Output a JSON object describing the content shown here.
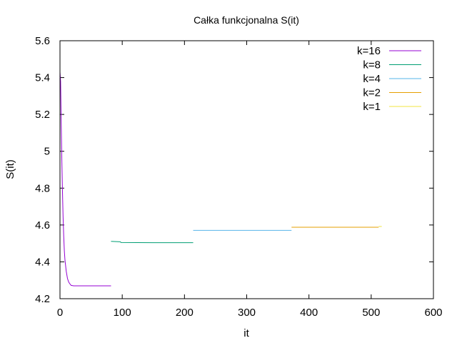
{
  "chart_data": {
    "type": "line",
    "title": "Całka funkcjonalna S(it)",
    "xlabel": "it",
    "ylabel": "S(it)",
    "xlim": [
      0,
      600
    ],
    "ylim": [
      4.2,
      5.6
    ],
    "x_ticks": [
      "0",
      "100",
      "200",
      "300",
      "400",
      "500",
      "600"
    ],
    "y_ticks": [
      "4.2",
      "4.4",
      "4.6",
      "4.8",
      "5",
      "5.2",
      "5.4",
      "5.6"
    ],
    "grid": false,
    "legend_position": "top-right",
    "series": [
      {
        "name": "k=16",
        "color": "#9400d3",
        "points": [
          [
            0,
            5.43
          ],
          [
            1,
            5.38
          ],
          [
            2,
            5.15
          ],
          [
            3,
            4.95
          ],
          [
            4,
            4.78
          ],
          [
            5,
            4.64
          ],
          [
            6,
            4.54
          ],
          [
            7,
            4.46
          ],
          [
            8,
            4.41
          ],
          [
            10,
            4.35
          ],
          [
            12,
            4.31
          ],
          [
            14,
            4.29
          ],
          [
            16,
            4.28
          ],
          [
            18,
            4.272
          ],
          [
            22,
            4.27
          ],
          [
            30,
            4.27
          ],
          [
            50,
            4.27
          ],
          [
            82,
            4.27
          ]
        ]
      },
      {
        "name": "k=8",
        "color": "#009e73",
        "points": [
          [
            82,
            4.511
          ],
          [
            97,
            4.509
          ],
          [
            98,
            4.505
          ],
          [
            150,
            4.504
          ],
          [
            214,
            4.504
          ]
        ]
      },
      {
        "name": "k=4",
        "color": "#56b4e9",
        "points": [
          [
            214,
            4.571
          ],
          [
            300,
            4.571
          ],
          [
            372,
            4.571
          ]
        ]
      },
      {
        "name": "k=2",
        "color": "#e69f00",
        "points": [
          [
            372,
            4.588
          ],
          [
            450,
            4.588
          ],
          [
            512,
            4.588
          ]
        ]
      },
      {
        "name": "k=1",
        "color": "#f0e442",
        "points": [
          [
            512,
            4.592
          ],
          [
            517,
            4.592
          ]
        ]
      }
    ]
  }
}
